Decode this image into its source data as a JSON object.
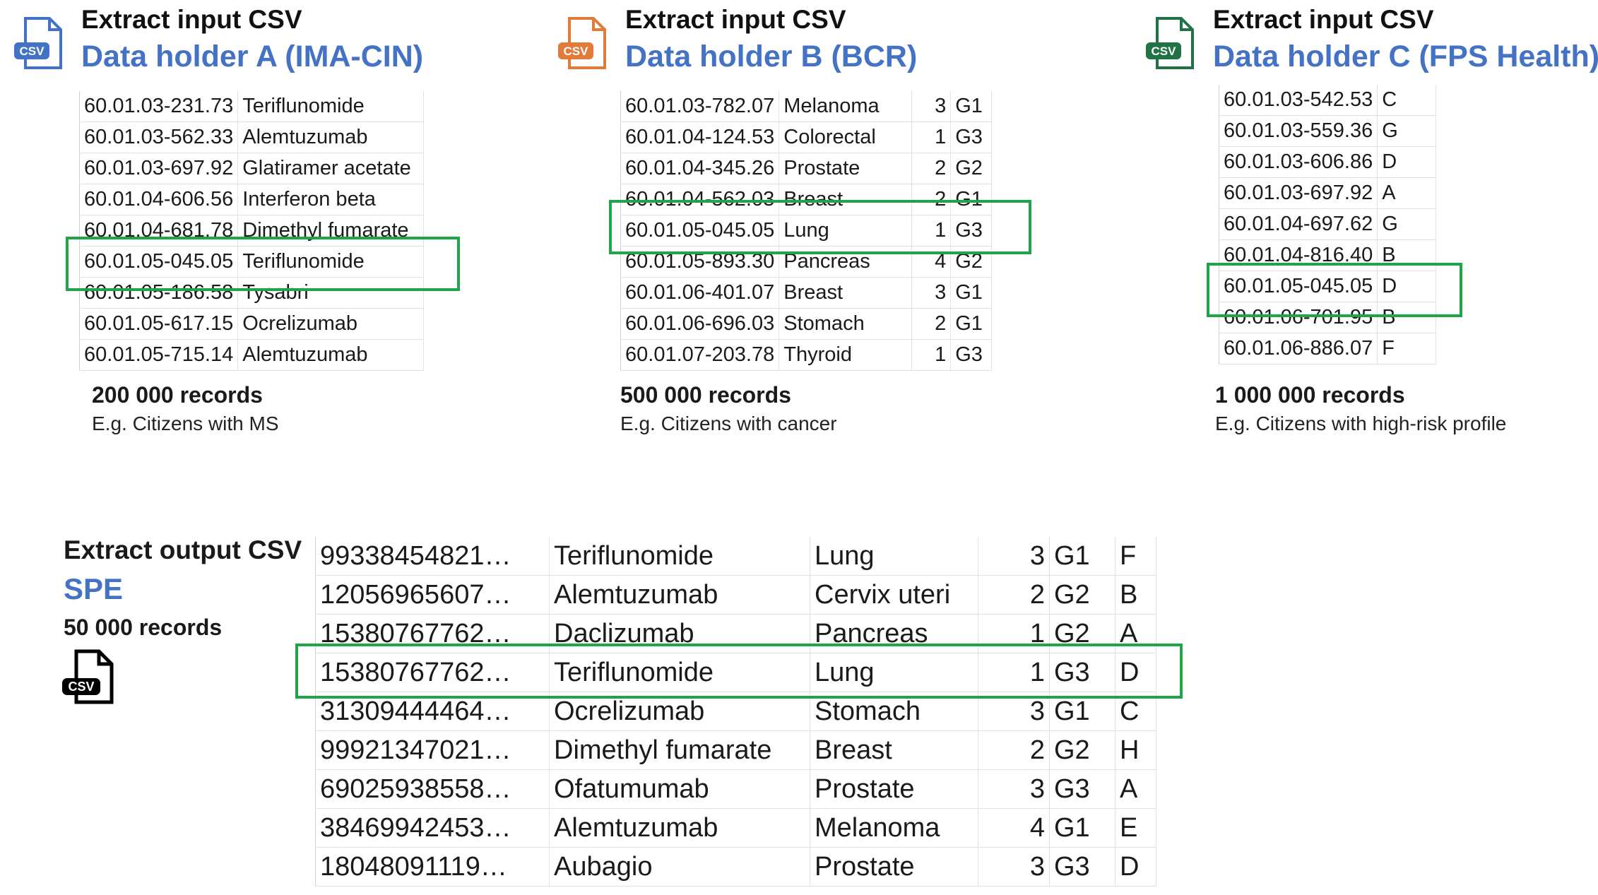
{
  "holders": [
    {
      "title": "Extract input CSV",
      "name": "Data holder A (IMA-CIN)",
      "icon_color": "#4472c4",
      "icon_label": "CSV",
      "rows": [
        [
          "60.01.03-231.73",
          "Teriflunomide"
        ],
        [
          "60.01.03-562.33",
          "Alemtuzumab"
        ],
        [
          "60.01.03-697.92",
          "Glatiramer acetate"
        ],
        [
          "60.01.04-606.56",
          "Interferon beta"
        ],
        [
          "60.01.04-681.78",
          "Dimethyl fumarate"
        ],
        [
          "60.01.05-045.05",
          "Teriflunomide"
        ],
        [
          "60.01.05-186.58",
          "Tysabri"
        ],
        [
          "60.01.05-617.15",
          "Ocrelizumab"
        ],
        [
          "60.01.05-715.14",
          "Alemtuzumab"
        ]
      ],
      "records": "200 000 records",
      "example": "E.g. Citizens with MS"
    },
    {
      "title": "Extract input CSV",
      "name": "Data holder B (BCR)",
      "icon_color": "#e07b39",
      "icon_label": "CSV",
      "rows": [
        [
          "60.01.03-782.07",
          "Melanoma",
          "3",
          "G1"
        ],
        [
          "60.01.04-124.53",
          "Colorectal",
          "1",
          "G3"
        ],
        [
          "60.01.04-345.26",
          "Prostate",
          "2",
          "G2"
        ],
        [
          "60.01.04-562.03",
          "Breast",
          "2",
          "G1"
        ],
        [
          "60.01.05-045.05",
          "Lung",
          "1",
          "G3"
        ],
        [
          "60.01.05-893.30",
          "Pancreas",
          "4",
          "G2"
        ],
        [
          "60.01.06-401.07",
          "Breast",
          "3",
          "G1"
        ],
        [
          "60.01.06-696.03",
          "Stomach",
          "2",
          "G1"
        ],
        [
          "60.01.07-203.78",
          "Thyroid",
          "1",
          "G3"
        ]
      ],
      "records": "500 000 records",
      "example": "E.g. Citizens with cancer"
    },
    {
      "title": "Extract input CSV",
      "name": "Data holder C (FPS Health)",
      "icon_color": "#217346",
      "icon_label": "CSV",
      "rows": [
        [
          "60.01.03-542.53",
          "C"
        ],
        [
          "60.01.03-559.36",
          "G"
        ],
        [
          "60.01.03-606.86",
          "D"
        ],
        [
          "60.01.03-697.92",
          "A"
        ],
        [
          "60.01.04-697.62",
          "G"
        ],
        [
          "60.01.04-816.40",
          "B"
        ],
        [
          "60.01.05-045.05",
          "D"
        ],
        [
          "60.01.06-701.95",
          "B"
        ],
        [
          "60.01.06-886.07",
          "F"
        ]
      ],
      "records": "1 000 000 records",
      "example": "E.g. Citizens with high-risk profile"
    }
  ],
  "output": {
    "title": "Extract output CSV",
    "name": "SPE",
    "records": "50 000 records",
    "icon_label": "CSV",
    "rows": [
      [
        "99338454821…",
        "Teriflunomide",
        "Lung",
        "3",
        "G1",
        "F"
      ],
      [
        "12056965607…",
        "Alemtuzumab",
        "Cervix uteri",
        "2",
        "G2",
        "B"
      ],
      [
        "15380767762…",
        "Daclizumab",
        "Pancreas",
        "1",
        "G2",
        "A"
      ],
      [
        "15380767762…",
        "Teriflunomide",
        "Lung",
        "1",
        "G3",
        "D"
      ],
      [
        "31309444464…",
        "Ocrelizumab",
        "Stomach",
        "3",
        "G1",
        "C"
      ],
      [
        "99921347021…",
        "Dimethyl fumarate",
        "Breast",
        "2",
        "G2",
        "H"
      ],
      [
        "69025938558…",
        "Ofatumumab",
        "Prostate",
        "3",
        "G3",
        "A"
      ],
      [
        "38469942453…",
        "Alemtuzumab",
        "Melanoma",
        "4",
        "G1",
        "E"
      ],
      [
        "18048091119…",
        "Aubagio",
        "Prostate",
        "3",
        "G3",
        "D"
      ]
    ]
  },
  "highlight_color": "#1fa44a"
}
